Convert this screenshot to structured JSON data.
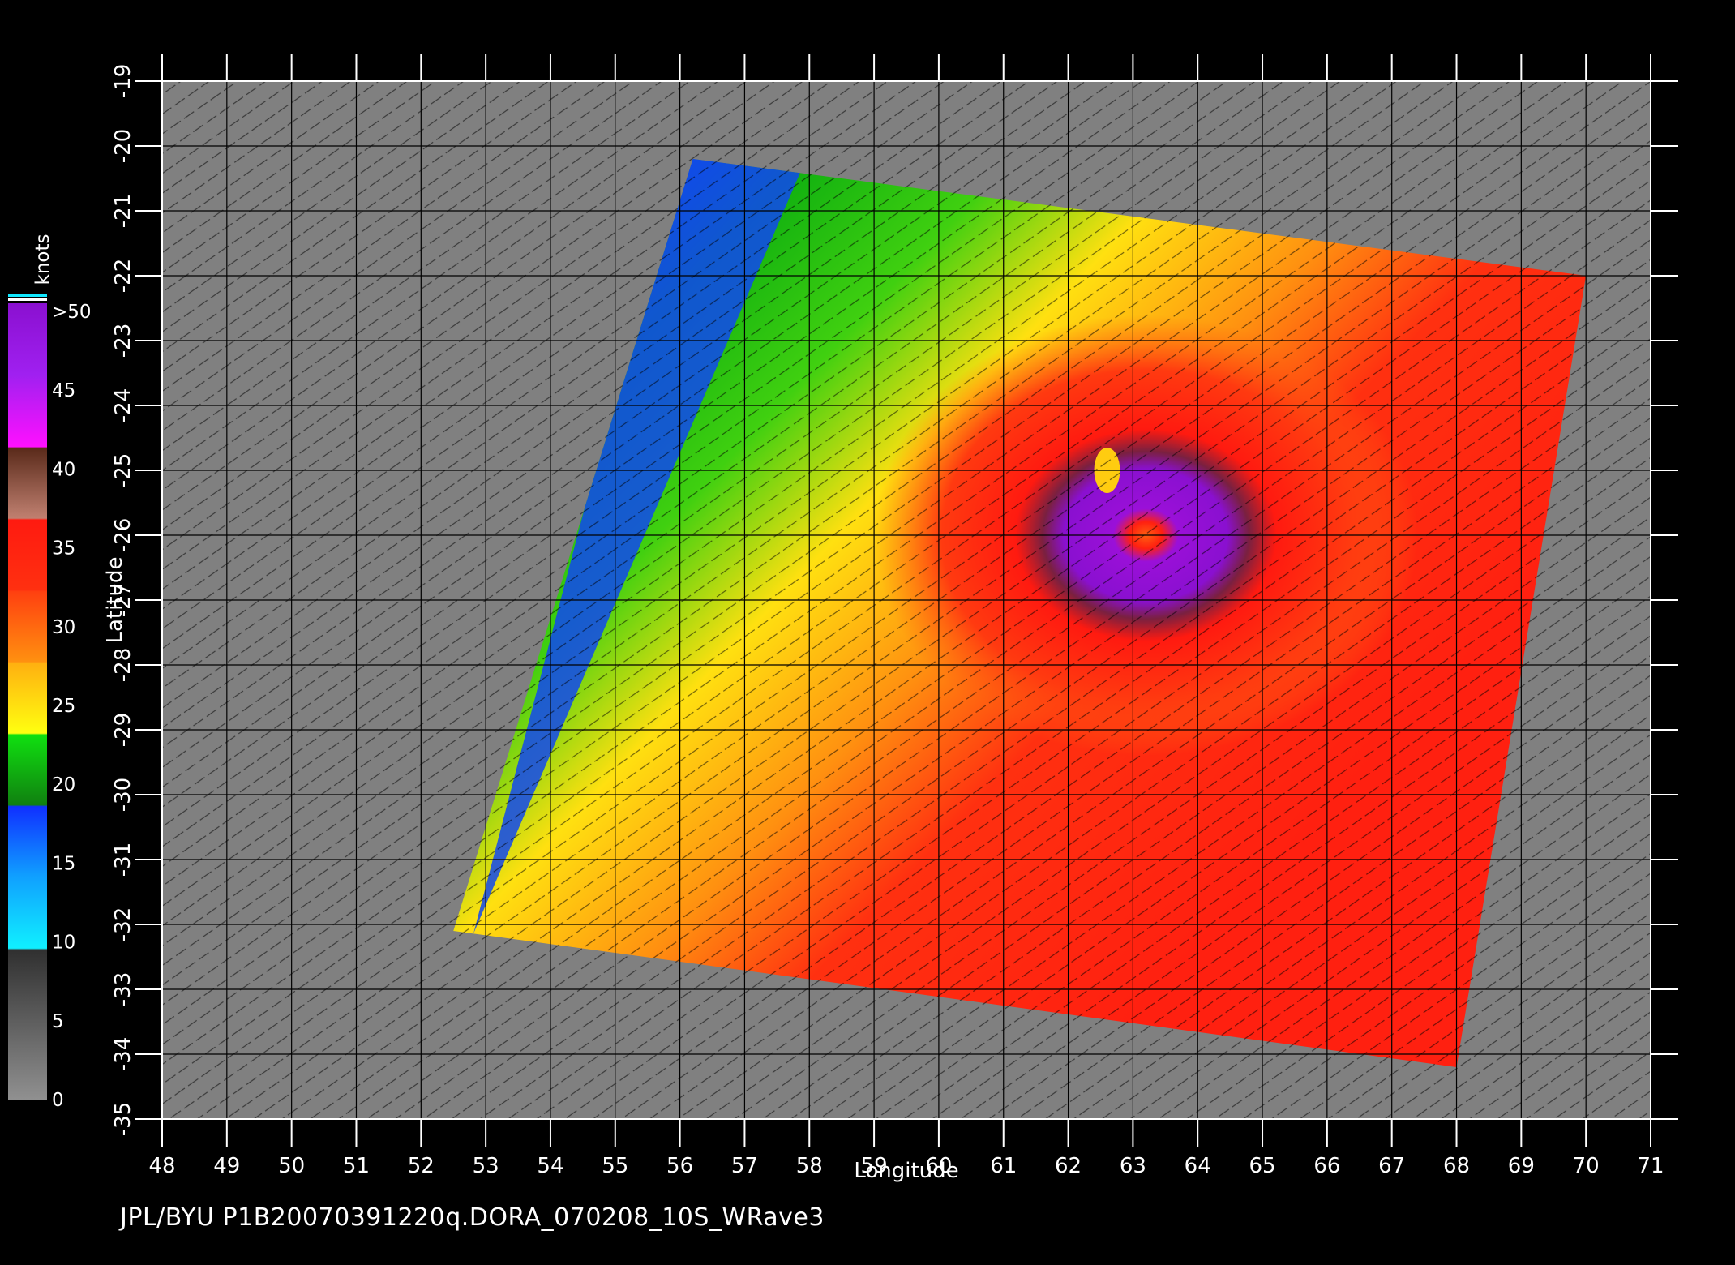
{
  "map": {
    "xlabel": "Longitude",
    "ylabel": "Latitude",
    "lon_range": [
      48,
      71
    ],
    "lat_range": [
      -35,
      -19
    ],
    "lon_ticks": [
      "48",
      "49",
      "50",
      "51",
      "52",
      "53",
      "54",
      "55",
      "56",
      "57",
      "58",
      "59",
      "60",
      "61",
      "62",
      "63",
      "64",
      "65",
      "66",
      "67",
      "68",
      "69",
      "70",
      "71"
    ],
    "lat_ticks": [
      "-19",
      "-20",
      "-21",
      "-22",
      "-23",
      "-24",
      "-25",
      "-26",
      "-27",
      "-28",
      "-29",
      "-30",
      "-31",
      "-32",
      "-33",
      "-34",
      "-35"
    ],
    "grid": true,
    "background_color": "#000000",
    "land_no_data_color": "#808080",
    "swath_corners_lonlat": [
      [
        56.2,
        -20.2
      ],
      [
        70.0,
        -22.0
      ],
      [
        68.0,
        -34.2
      ],
      [
        52.5,
        -32.1
      ]
    ],
    "storm_center_lonlat": [
      62.6,
      -25.0
    ],
    "wind_field_description": "Tropical cyclone wind speed field with vector arrows; maximum (>50 knots, purple) ring around eye near 62.6E 25S; lower speeds (green/blue) toward northwest edge of swath"
  },
  "legend": {
    "title": "knots",
    "labels": [
      ">50",
      "45",
      "40",
      "35",
      "30",
      "25",
      "20",
      "15",
      "10",
      "5",
      "0"
    ],
    "colors": {
      "purple": "#8a10d0",
      "magenta": "#ff10ff",
      "brown": "#7a3b20",
      "red": "#ff1a10",
      "orange": "#ff7f10",
      "yellow": "#ffdd10",
      "green": "#10c010",
      "blue": "#1050ff",
      "cyan": "#10e8ff",
      "gray": "#808080"
    }
  },
  "footer": {
    "credit": "JPL/BYU  P1B20070391220q.DORA_070208_10S_WRave3"
  }
}
